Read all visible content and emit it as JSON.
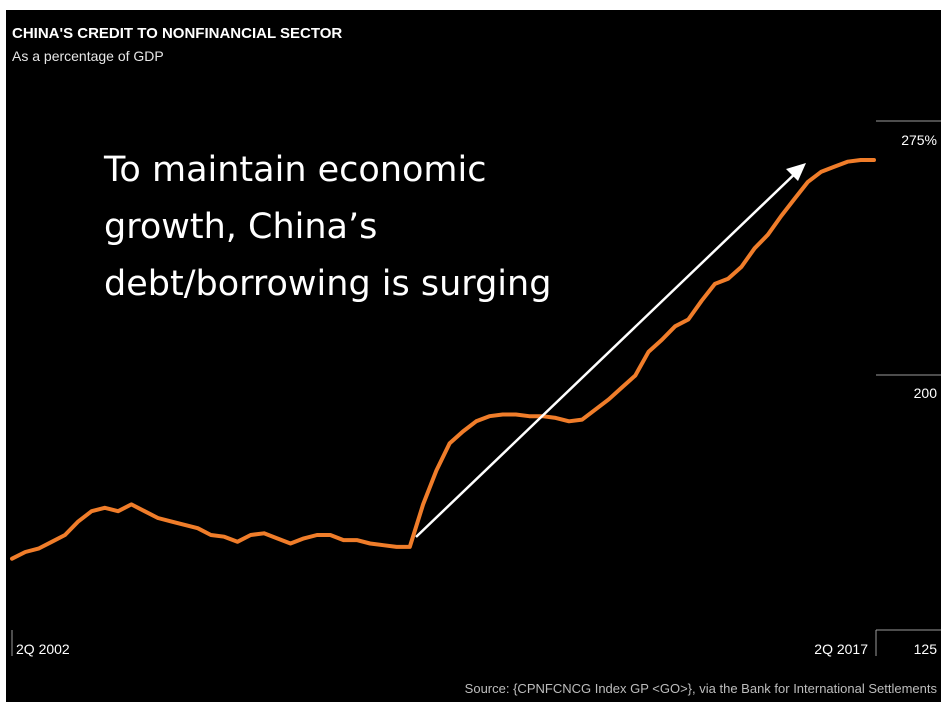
{
  "chart_data": {
    "type": "line",
    "title": "CHINA'S CREDIT TO NONFINANCIAL SECTOR",
    "subtitle": "As a percentage of GDP",
    "x_start_label": "2Q 2002",
    "x_end_label": "2Q 2017",
    "y_tick_labels": [
      "275%",
      "200",
      "125"
    ],
    "ylim": [
      125,
      275
    ],
    "line_color": "#f07d2a",
    "background_color": "#000000",
    "annotation": {
      "lines": [
        "To maintain economic",
        "growth, China’s",
        "debt/borrowing is surging"
      ],
      "has_arrow": true
    },
    "source": "Source: {CPNFCNCG Index GP <GO>}, via the Bank for International Settlements",
    "series": [
      {
        "values": [
          146,
          148,
          149,
          151,
          153,
          157,
          160,
          161,
          160,
          162,
          160,
          158,
          157,
          156,
          155,
          153,
          152.5,
          151,
          153,
          153.5,
          152,
          150.5,
          152,
          153,
          153,
          151.5,
          151.5,
          150.5,
          150,
          149.5,
          149.5,
          162,
          172,
          180,
          183.5,
          186.5,
          188,
          188.5,
          188.5,
          188,
          188,
          187.5,
          186.5,
          187,
          190,
          193,
          196.5,
          200,
          207,
          210.5,
          214.5,
          216.5,
          222,
          227,
          228.5,
          232,
          237.5,
          241.5,
          247,
          252,
          257,
          260,
          261.5,
          263,
          263.5,
          263.5
        ]
      }
    ]
  }
}
